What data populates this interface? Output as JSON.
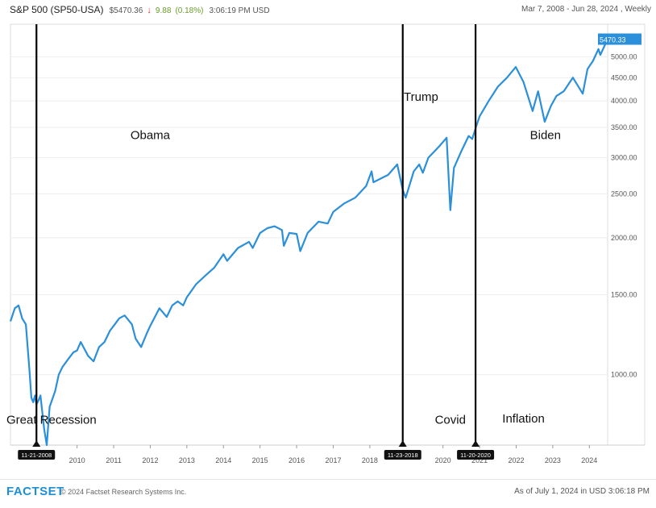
{
  "header": {
    "title": "S&P 500 (SP50-USA)",
    "price": "$5470.36",
    "arrow": "↓",
    "change": "9.88",
    "change_pct": "(0.18%)",
    "time": "3:06:19 PM USD",
    "range": "Mar 7, 2008 - Jun 28, 2024 , Weekly"
  },
  "colors": {
    "line": "#2b8fd9",
    "price_tag": "#2b8fd9"
  },
  "chart_data": {
    "type": "line",
    "log_scale": true,
    "ylim": [
      700,
      5900
    ],
    "xlim": [
      2008.18,
      2024.5
    ],
    "y_tick_labels": [
      "1000.00",
      "1500.00",
      "2000.00",
      "2500.00",
      "3000.00",
      "3500.00",
      "4000.00",
      "4500.00",
      "5000.00"
    ],
    "y_ticks": [
      1000,
      1500,
      2000,
      2500,
      3000,
      3500,
      4000,
      4500,
      5000
    ],
    "x_tick_labels": [
      {
        "label": "2010",
        "x": 2010
      },
      {
        "label": "2011",
        "x": 2011
      },
      {
        "label": "2012",
        "x": 2012
      },
      {
        "label": "2013",
        "x": 2013
      },
      {
        "label": "2014",
        "x": 2014
      },
      {
        "label": "2015",
        "x": 2015
      },
      {
        "label": "2016",
        "x": 2016
      },
      {
        "label": "2017",
        "x": 2017
      },
      {
        "label": "2018",
        "x": 2018
      },
      {
        "label": "2020",
        "x": 2020
      },
      {
        "label": "2021",
        "x": 2021
      },
      {
        "label": "2022",
        "x": 2022
      },
      {
        "label": "2023",
        "x": 2023
      },
      {
        "label": "2024",
        "x": 2024
      }
    ],
    "last_value_label": "5470.33",
    "last_value": 5470.33,
    "series": [
      {
        "x": [
          2008.18,
          2008.3,
          2008.4,
          2008.5,
          2008.6,
          2008.7,
          2008.75,
          2008.8,
          2008.85,
          2008.89,
          2008.95,
          2009.0,
          2009.1,
          2009.17,
          2009.25,
          2009.4,
          2009.5,
          2009.6,
          2009.75,
          2009.9,
          2010.0,
          2010.1,
          2010.3,
          2010.45,
          2010.6,
          2010.75,
          2010.9,
          2011.0,
          2011.15,
          2011.3,
          2011.5,
          2011.6,
          2011.75,
          2011.9,
          2012.0,
          2012.25,
          2012.45,
          2012.6,
          2012.75,
          2012.9,
          2013.0,
          2013.25,
          2013.5,
          2013.75,
          2014.0,
          2014.1,
          2014.4,
          2014.7,
          2014.8,
          2015.0,
          2015.2,
          2015.4,
          2015.6,
          2015.65,
          2015.8,
          2016.0,
          2016.1,
          2016.3,
          2016.6,
          2016.85,
          2017.0,
          2017.3,
          2017.6,
          2017.9,
          2018.05,
          2018.1,
          2018.3,
          2018.5,
          2018.75,
          2018.9,
          2018.98,
          2019.2,
          2019.35,
          2019.45,
          2019.6,
          2019.9,
          2020.1,
          2020.2,
          2020.3,
          2020.5,
          2020.7,
          2020.8,
          2020.9,
          2021.0,
          2021.25,
          2021.5,
          2021.75,
          2021.99,
          2022.2,
          2022.45,
          2022.6,
          2022.78,
          2022.95,
          2023.1,
          2023.3,
          2023.55,
          2023.82,
          2023.95,
          2024.1,
          2024.25,
          2024.3,
          2024.5
        ],
        "values": [
          1310,
          1400,
          1420,
          1330,
          1290,
          1020,
          890,
          870,
          900,
          860,
          880,
          900,
          760,
          700,
          850,
          920,
          1000,
          1040,
          1080,
          1120,
          1130,
          1180,
          1100,
          1070,
          1150,
          1180,
          1250,
          1280,
          1330,
          1350,
          1290,
          1200,
          1150,
          1230,
          1280,
          1400,
          1340,
          1420,
          1450,
          1420,
          1480,
          1580,
          1650,
          1720,
          1840,
          1780,
          1900,
          1960,
          1900,
          2050,
          2100,
          2120,
          2080,
          1920,
          2050,
          2040,
          1870,
          2050,
          2170,
          2150,
          2280,
          2380,
          2450,
          2600,
          2800,
          2650,
          2700,
          2750,
          2900,
          2550,
          2450,
          2800,
          2900,
          2780,
          3000,
          3180,
          3320,
          2300,
          2850,
          3100,
          3350,
          3300,
          3500,
          3700,
          4000,
          4300,
          4500,
          4750,
          4400,
          3800,
          4200,
          3600,
          3900,
          4100,
          4200,
          4500,
          4150,
          4700,
          4900,
          5200,
          5050,
          5470
        ]
      }
    ],
    "events": [
      {
        "label": "11-21-2008",
        "x": 2008.89
      },
      {
        "label": "11-23-2018",
        "x": 2018.9
      },
      {
        "label": "11-20-2020",
        "x": 2020.89
      }
    ],
    "annotations": [
      {
        "text": "Obama",
        "x": 2012.0,
        "y": 3300
      },
      {
        "text": "Trump",
        "x": 2019.4,
        "y": 4000
      },
      {
        "text": "Biden",
        "x": 2022.8,
        "y": 3300
      },
      {
        "text": "Great Recession",
        "x": 2009.3,
        "y": 780
      },
      {
        "text": "Covid",
        "x": 2020.2,
        "y": 780
      },
      {
        "text": "Inflation",
        "x": 2022.2,
        "y": 785
      }
    ]
  },
  "footer": {
    "logo": "FACTSET",
    "copyright": "© 2024 Factset Research Systems Inc.",
    "as_of": "As of July 1, 2024 in USD 3:06:18 PM"
  }
}
